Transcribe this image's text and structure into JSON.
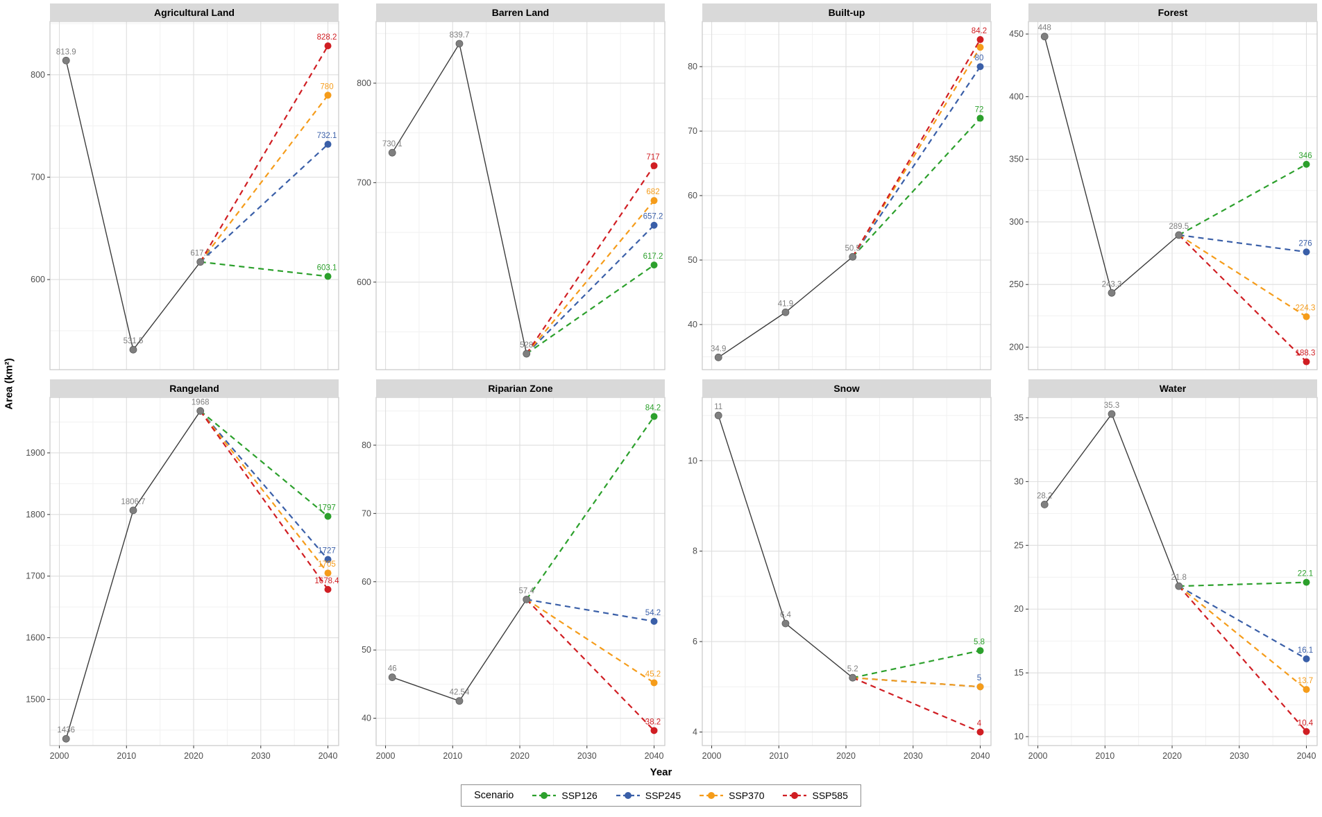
{
  "figure": {
    "y_axis_title": "Area (km²)",
    "x_axis_title": "Year",
    "legend": {
      "title": "Scenario",
      "items": [
        {
          "label": "SSP126",
          "color": "#2CA02C"
        },
        {
          "label": "SSP245",
          "color": "#3A5FA8"
        },
        {
          "label": "SSP370",
          "color": "#F59C1A"
        },
        {
          "label": "SSP585",
          "color": "#D01E23"
        }
      ]
    }
  },
  "axes": {
    "x_ticks": [
      2000,
      2010,
      2020,
      2030,
      2040
    ],
    "x_minor_ticks": [
      2005,
      2015,
      2025,
      2035
    ],
    "x_domain": [
      1998.6,
      2041.6
    ],
    "historical_years": [
      2001,
      2011,
      2021
    ],
    "scenario_year": 2040
  },
  "style": {
    "historical_line": "#3C3C3C",
    "historical_point": "#7F7F7F",
    "historical_label": "#7F7F7F",
    "grid_major": "#DEDEDE",
    "grid_minor": "#F1F1F1",
    "panel_border": "#C8C8C8",
    "panel_bg": "#FFFFFF",
    "strip_bg": "#D9D9D9",
    "strip_text": "#000000",
    "tick_text": "#4D4D4D"
  },
  "chart_data": [
    {
      "type": "line",
      "title": "Agricultural Land",
      "historical": {
        "values": [
          813.9,
          531.5,
          617.2
        ],
        "labels": [
          "813.9",
          "531.5",
          "617.2"
        ]
      },
      "scenarios": [
        {
          "name": "SSP126",
          "value": 603.1,
          "label": "603.1"
        },
        {
          "name": "SSP245",
          "value": 732.1,
          "label": "732.1"
        },
        {
          "name": "SSP370",
          "value": 780,
          "label": "780"
        },
        {
          "name": "SSP585",
          "value": 828.2,
          "label": "828.2"
        }
      ],
      "y_ticks": [
        600,
        700,
        800
      ],
      "y_domain": [
        512,
        852
      ]
    },
    {
      "type": "line",
      "title": "Barren Land",
      "historical": {
        "values": [
          730.1,
          839.7,
          528
        ],
        "labels": [
          "730.1",
          "839.7",
          "528"
        ]
      },
      "scenarios": [
        {
          "name": "SSP126",
          "value": 617.2,
          "label": "617.2"
        },
        {
          "name": "SSP245",
          "value": 657.2,
          "label": "657.2"
        },
        {
          "name": "SSP370",
          "value": 682,
          "label": "682"
        },
        {
          "name": "SSP585",
          "value": 717,
          "label": "717"
        }
      ],
      "y_ticks": [
        600,
        700,
        800
      ],
      "y_domain": [
        512,
        862
      ]
    },
    {
      "type": "line",
      "title": "Built-up",
      "historical": {
        "values": [
          34.9,
          41.9,
          50.5
        ],
        "labels": [
          "34.9",
          "41.9",
          "50.5"
        ]
      },
      "scenarios": [
        {
          "name": "SSP126",
          "value": 72,
          "label": "72"
        },
        {
          "name": "SSP245",
          "value": 80,
          "label": "80"
        },
        {
          "name": "SSP370",
          "value": 83,
          "label": ""
        },
        {
          "name": "SSP585",
          "value": 84.2,
          "label": "84.2"
        }
      ],
      "y_ticks": [
        40,
        50,
        60,
        70,
        80
      ],
      "y_domain": [
        33,
        87
      ]
    },
    {
      "type": "line",
      "title": "Forest",
      "historical": {
        "values": [
          448,
          243.3,
          289.5
        ],
        "labels": [
          "448",
          "243.3",
          "289.5"
        ]
      },
      "scenarios": [
        {
          "name": "SSP126",
          "value": 346,
          "label": "346"
        },
        {
          "name": "SSP245",
          "value": 276,
          "label": "276"
        },
        {
          "name": "SSP370",
          "value": 224.3,
          "label": "224.3"
        },
        {
          "name": "SSP585",
          "value": 188.3,
          "label": "188.3"
        }
      ],
      "y_ticks": [
        200,
        250,
        300,
        350,
        400,
        450
      ],
      "y_domain": [
        182,
        460
      ]
    },
    {
      "type": "line",
      "title": "Rangeland",
      "historical": {
        "values": [
          1436,
          1806.7,
          1968
        ],
        "labels": [
          "1436",
          "1806.7",
          "1968"
        ]
      },
      "scenarios": [
        {
          "name": "SSP126",
          "value": 1797,
          "label": "1797"
        },
        {
          "name": "SSP245",
          "value": 1727,
          "label": "1727"
        },
        {
          "name": "SSP370",
          "value": 1705,
          "label": "1705"
        },
        {
          "name": "SSP585",
          "value": 1678.4,
          "label": "1678.4"
        }
      ],
      "y_ticks": [
        1500,
        1600,
        1700,
        1800,
        1900
      ],
      "y_domain": [
        1425,
        1990
      ]
    },
    {
      "type": "line",
      "title": "Riparian Zone",
      "historical": {
        "values": [
          46,
          42.54,
          57.4
        ],
        "labels": [
          "46",
          "42.54",
          "57.4"
        ]
      },
      "scenarios": [
        {
          "name": "SSP126",
          "value": 84.2,
          "label": "84.2"
        },
        {
          "name": "SSP245",
          "value": 54.2,
          "label": "54.2"
        },
        {
          "name": "SSP370",
          "value": 45.2,
          "label": "45.2"
        },
        {
          "name": "SSP585",
          "value": 38.2,
          "label": "38.2"
        }
      ],
      "y_ticks": [
        40,
        50,
        60,
        70,
        80
      ],
      "y_domain": [
        36,
        87
      ]
    },
    {
      "type": "line",
      "title": "Snow",
      "historical": {
        "values": [
          11,
          6.4,
          5.2
        ],
        "labels": [
          "11",
          "6.4",
          "5.2"
        ]
      },
      "scenarios": [
        {
          "name": "SSP126",
          "value": 5.8,
          "label": "5.8"
        },
        {
          "name": "SSP245",
          "value": 5,
          "label": "5"
        },
        {
          "name": "SSP370",
          "value": 5,
          "label": ""
        },
        {
          "name": "SSP585",
          "value": 4,
          "label": "4"
        }
      ],
      "y_ticks": [
        4,
        6,
        8,
        10
      ],
      "y_domain": [
        3.7,
        11.4
      ]
    },
    {
      "type": "line",
      "title": "Water",
      "historical": {
        "values": [
          28.2,
          35.3,
          21.8
        ],
        "labels": [
          "28.2",
          "35.3",
          "21.8"
        ]
      },
      "scenarios": [
        {
          "name": "SSP126",
          "value": 22.1,
          "label": "22.1"
        },
        {
          "name": "SSP245",
          "value": 16.1,
          "label": "16.1"
        },
        {
          "name": "SSP370",
          "value": 13.7,
          "label": "13.7"
        },
        {
          "name": "SSP585",
          "value": 10.4,
          "label": "10.4"
        }
      ],
      "y_ticks": [
        10,
        15,
        20,
        25,
        30,
        35
      ],
      "y_domain": [
        9.3,
        36.6
      ]
    }
  ]
}
